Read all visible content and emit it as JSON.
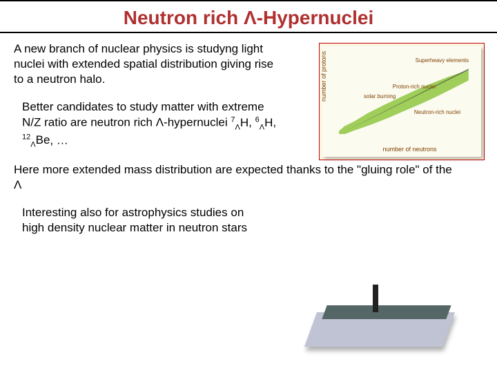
{
  "title": "Neutron rich Λ-Hypernuclei",
  "para1": "A new branch of nuclear physics is studyng light nuclei with extended spatial distribution giving rise  to a neutron halo.",
  "para2_pre": "Better candidates to study matter with extreme N/Z ratio are neutron rich Λ-hypernuclei ",
  "nuclides": [
    {
      "a": "7",
      "sub": "Λ",
      "el": "H"
    },
    {
      "a": "6",
      "sub": "Λ",
      "el": "H"
    },
    {
      "a": "12",
      "sub": "Λ",
      "el": "Be"
    }
  ],
  "para2_post": ", …",
  "para3": "Here more extended mass distribution are expected thanks to the \"gluing role\" of the Λ",
  "para4": "Interesting also for astrophysics studies on high density nuclear matter in neutron stars",
  "chart": {
    "type": "infographic",
    "ylabel": "number of protons",
    "xlabel": "number of neutrons",
    "band_color": "#8ec63f",
    "border_color": "#c00000",
    "bg_color": "#fdf6e3",
    "inner_bg": "#fbfbf0",
    "label_color": "#804000",
    "label_fontsize": 8,
    "labels": {
      "superheavy": "Superheavy elements",
      "proton_rich": "Proton-rich nuclei",
      "solar": "solar burning",
      "neutron_rich": "Neutron-rich nuclei"
    }
  },
  "colors": {
    "title": "#b03030",
    "text": "#000000",
    "background": "#ffffff"
  }
}
